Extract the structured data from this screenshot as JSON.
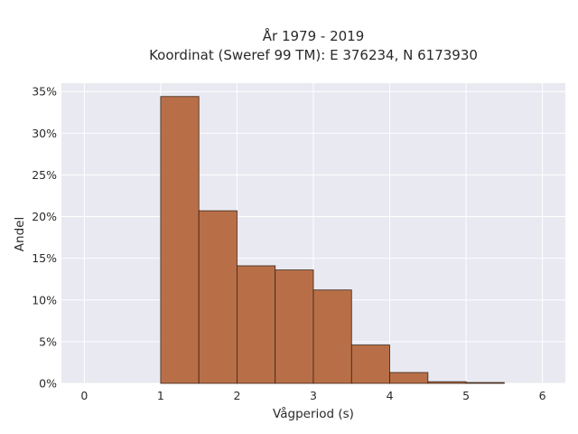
{
  "chart_data": {
    "type": "bar",
    "title_lines": [
      "År 1979 - 2019",
      "Koordinat (Sweref 99 TM): E 376234, N 6173930"
    ],
    "xlabel": "Vågperiod (s)",
    "ylabel": "Andel",
    "xlim": [
      -0.3,
      6.3
    ],
    "ylim": [
      0,
      36
    ],
    "x_ticks": [
      "0",
      "1",
      "2",
      "3",
      "4",
      "5",
      "6"
    ],
    "y_ticks": [
      "0%",
      "5%",
      "10%",
      "15%",
      "20%",
      "25%",
      "30%",
      "35%"
    ],
    "grid": true,
    "bins": [
      {
        "x0": 1.0,
        "x1": 1.5,
        "value": 34.4
      },
      {
        "x0": 1.5,
        "x1": 2.0,
        "value": 20.7
      },
      {
        "x0": 2.0,
        "x1": 2.5,
        "value": 14.1
      },
      {
        "x0": 2.5,
        "x1": 3.0,
        "value": 13.6
      },
      {
        "x0": 3.0,
        "x1": 3.5,
        "value": 11.2
      },
      {
        "x0": 3.5,
        "x1": 4.0,
        "value": 4.6
      },
      {
        "x0": 4.0,
        "x1": 4.5,
        "value": 1.3
      },
      {
        "x0": 4.5,
        "x1": 5.0,
        "value": 0.2
      },
      {
        "x0": 5.0,
        "x1": 5.5,
        "value": 0.1
      }
    ],
    "colors": {
      "bar_fill": "#b86f48",
      "bar_edge": "#3b2416",
      "plot_bg": "#e9e9f1",
      "grid": "#ffffff"
    }
  }
}
